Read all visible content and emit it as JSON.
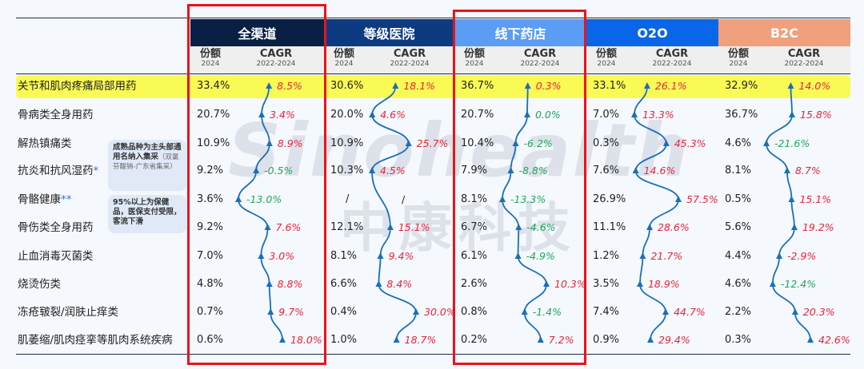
{
  "watermark": {
    "en": "Sinohealth",
    "cn": "中康科技"
  },
  "sub_headers": {
    "share": "份额",
    "share_year": "2024",
    "cagr": "CAGR",
    "cagr_years": "2022-2024"
  },
  "colors": {
    "positive": "#e8253a",
    "negative": "#1fa85a",
    "line": "#1a6fba",
    "highlight": "#fafa55",
    "redbox": "#e8141a"
  },
  "notes": [
    {
      "bold": "成熟品种为主头部通用名纳入集采",
      "small": "（双氯芬酸钠-广东省集采）"
    },
    {
      "bold": "95%以上为保健品，医保支付受限，客流下滑",
      "small": ""
    }
  ],
  "chart_data": {
    "type": "table",
    "title": "",
    "columns_per_channel": [
      "份额 2024",
      "CAGR 2022-2024"
    ],
    "channels": [
      {
        "name": "全渠道",
        "color": "#0a1f44",
        "highlighted": true,
        "share": [
          "33.4%",
          "20.7%",
          "10.9%",
          "9.2%",
          "3.6%",
          "9.2%",
          "7.0%",
          "4.8%",
          "0.7%",
          "0.6%"
        ],
        "cagr": [
          "8.5%",
          "3.4%",
          "8.9%",
          "-0.5%",
          "-13.0%",
          "7.6%",
          "3.0%",
          "8.8%",
          "9.7%",
          "18.0%"
        ],
        "cagr_values": [
          8.5,
          3.4,
          8.9,
          -0.5,
          -13.0,
          7.6,
          3.0,
          8.8,
          9.7,
          18.0
        ]
      },
      {
        "name": "等级医院",
        "color": "#0d3b82",
        "highlighted": false,
        "share": [
          "30.6%",
          "20.0%",
          "10.9%",
          "10.3%",
          "/",
          "12.1%",
          "8.1%",
          "6.6%",
          "0.4%",
          "1.0%"
        ],
        "cagr": [
          "18.1%",
          "4.6%",
          "25.7%",
          "4.5%",
          "/",
          "15.1%",
          "9.4%",
          "8.4%",
          "30.0%",
          "18.7%"
        ],
        "cagr_values": [
          18.1,
          4.6,
          25.7,
          4.5,
          null,
          15.1,
          9.4,
          8.4,
          30.0,
          18.7
        ]
      },
      {
        "name": "线下药店",
        "color": "#5b9cf5",
        "highlighted": true,
        "share": [
          "36.7%",
          "20.7%",
          "10.4%",
          "7.9%",
          "8.1%",
          "6.7%",
          "6.1%",
          "2.6%",
          "0.8%",
          "0.2%"
        ],
        "cagr": [
          "0.3%",
          "0.0%",
          "-6.2%",
          "-8.8%",
          "-13.3%",
          "-4.6%",
          "-4.9%",
          "10.3%",
          "-1.4%",
          "7.2%"
        ],
        "cagr_values": [
          0.3,
          0.0,
          -6.2,
          -8.8,
          -13.3,
          -4.6,
          -4.9,
          10.3,
          -1.4,
          7.2
        ]
      },
      {
        "name": "O2O",
        "color": "#0a66e8",
        "highlighted": false,
        "share": [
          "33.1%",
          "7.0%",
          "0.3%",
          "7.6%",
          "26.9%",
          "11.1%",
          "1.2%",
          "3.5%",
          "7.4%",
          "0.9%"
        ],
        "cagr": [
          "26.1%",
          "13.3%",
          "45.3%",
          "14.6%",
          "57.5%",
          "28.6%",
          "21.7%",
          "18.9%",
          "44.7%",
          "29.4%"
        ],
        "cagr_values": [
          26.1,
          13.3,
          45.3,
          14.6,
          57.5,
          28.6,
          21.7,
          18.9,
          44.7,
          29.4
        ]
      },
      {
        "name": "B2C",
        "color": "#f0a07c",
        "highlighted": false,
        "share": [
          "32.9%",
          "36.7%",
          "4.6%",
          "8.1%",
          "0.5%",
          "5.6%",
          "4.4%",
          "4.6%",
          "2.2%",
          "0.3%"
        ],
        "cagr": [
          "14.0%",
          "15.8%",
          "-21.6%",
          "8.7%",
          "15.1%",
          "19.2%",
          "-2.9%",
          "-12.4%",
          "20.3%",
          "42.6%"
        ],
        "cagr_values": [
          14.0,
          15.8,
          -21.6,
          8.7,
          15.1,
          19.2,
          -2.9,
          -12.4,
          20.3,
          42.6
        ],
        "cagr_colors_override": {
          "6": "#e8253a"
        }
      }
    ],
    "categories": [
      {
        "label": "关节和肌肉疼痛局部用药",
        "star": ""
      },
      {
        "label": "骨病类全身用药",
        "star": ""
      },
      {
        "label": "解热镇痛类",
        "star": ""
      },
      {
        "label": "抗炎和抗风湿药",
        "star": "*"
      },
      {
        "label": "骨骼健康",
        "star": "**"
      },
      {
        "label": "骨伤类全身用药",
        "star": ""
      },
      {
        "label": "止血消毒灭菌类",
        "star": ""
      },
      {
        "label": "烧烫伤类",
        "star": ""
      },
      {
        "label": "冻疮皲裂/润肤止痒类",
        "star": ""
      },
      {
        "label": "肌萎缩/肌肉痉挛等肌肉系统疾病",
        "star": ""
      }
    ]
  }
}
